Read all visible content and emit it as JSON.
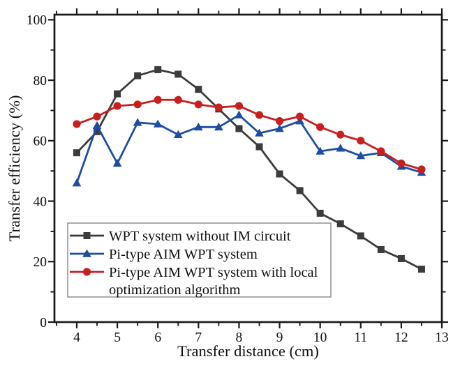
{
  "chart_data": {
    "type": "line",
    "title": "",
    "xlabel": "Transfer distance (cm)",
    "ylabel": "Transfer efficiency (%)",
    "xlim": [
      3.45,
      13
    ],
    "ylim": [
      0,
      101.7
    ],
    "grid": false,
    "axis_color": "#1a1a1a",
    "background_color": "#ffffff",
    "x_major_ticks": [
      4,
      5,
      6,
      7,
      8,
      9,
      10,
      11,
      12,
      13
    ],
    "x_minor_ticks": [
      3.5,
      4.5,
      5.5,
      6.5,
      7.5,
      8.5,
      9.5,
      10.5,
      11.5,
      12.5
    ],
    "y_major_ticks": [
      0,
      20,
      40,
      60,
      80,
      100
    ],
    "y_minor_ticks": [
      10,
      30,
      50,
      70,
      90
    ],
    "x": [
      4,
      4.5,
      5,
      5.5,
      6,
      6.5,
      7,
      7.5,
      8,
      8.5,
      9,
      9.5,
      10,
      10.5,
      11,
      11.5,
      12,
      12.5
    ],
    "series": [
      {
        "name": "WPT system without IM circuit",
        "marker": "square",
        "color": "#3c3c3c",
        "values": [
          56,
          63,
          75.5,
          81.5,
          83.5,
          82,
          77,
          70.5,
          64,
          58,
          49,
          43.5,
          36,
          32.5,
          28.5,
          24,
          21,
          17.5
        ]
      },
      {
        "name": "Pi-type AIM WPT system",
        "marker": "triangle",
        "color": "#1e4da2",
        "values": [
          46,
          65,
          52.5,
          66,
          65.5,
          62,
          64.5,
          64.5,
          68.5,
          62.5,
          64,
          66.5,
          56.5,
          57.5,
          55,
          56,
          51.5,
          49.5
        ]
      },
      {
        "name": "Pi-type AIM WPT system with local optimization algorithm",
        "marker": "circle",
        "color": "#c81f1f",
        "values": [
          65.5,
          68,
          71.5,
          72,
          73.5,
          73.5,
          72,
          71,
          71.5,
          68.5,
          66.5,
          68,
          64.5,
          62,
          60,
          56.5,
          52.5,
          50.5
        ]
      }
    ],
    "legend": {
      "position": "bottom-left",
      "border_color": "#8f8f8f",
      "entries": [
        {
          "series_index": 0,
          "lines": [
            "WPT system without IM circuit"
          ]
        },
        {
          "series_index": 1,
          "lines": [
            "Pi-type AIM WPT system"
          ]
        },
        {
          "series_index": 2,
          "lines": [
            "Pi-type AIM WPT system with local",
            "optimization algorithm"
          ]
        }
      ]
    }
  }
}
